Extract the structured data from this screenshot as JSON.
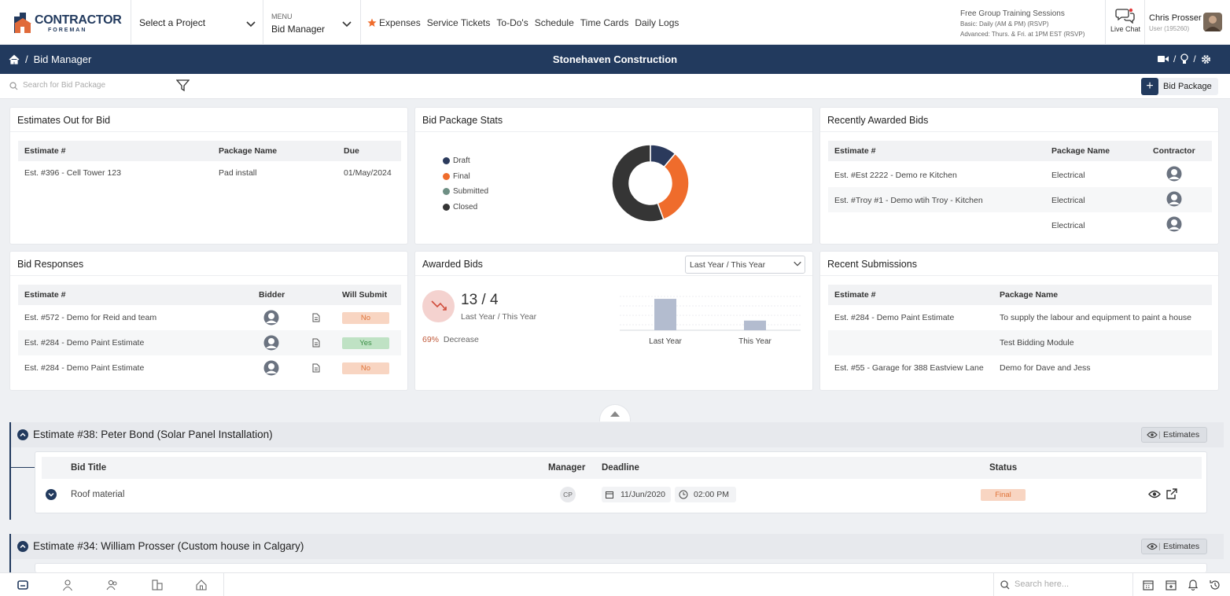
{
  "app": {
    "logo_text": "CONTRACTOR",
    "logo_sub": "FOREMAN",
    "project_select": "Select a Project",
    "menu_caption": "MENU",
    "menu_value": "Bid Manager",
    "nav_items": [
      "Expenses",
      "Service Tickets",
      "To-Do's",
      "Schedule",
      "Time Cards",
      "Daily Logs"
    ],
    "training": {
      "title": "Free Group Training Sessions",
      "basic": "Basic: Daily (AM & PM) (RSVP)",
      "advanced": "Advanced: Thurs. & Fri. at 1PM EST (RSVP)"
    },
    "live_chat": "Live Chat",
    "user_name": "Chris Prosser",
    "user_sub": "User (195260)"
  },
  "breadcrumb": {
    "sep": "/",
    "page": "Bid Manager"
  },
  "company": "Stonehaven Construction",
  "search": {
    "placeholder": "Search for Bid Package"
  },
  "add_button": "Bid Package",
  "estimates_out": {
    "title": "Estimates Out for Bid",
    "headers": [
      "Estimate #",
      "Package Name",
      "Due"
    ],
    "rows": [
      {
        "estimate": "Est. #396 - Cell Tower 123",
        "package": "Pad install",
        "due": "01/May/2024"
      }
    ]
  },
  "stats": {
    "title": "Bid Package Stats",
    "legend": [
      {
        "label": "Draft",
        "color": "#2b3a5c"
      },
      {
        "label": "Final",
        "color": "#ef6c2c"
      },
      {
        "label": "Submitted",
        "color": "#6e8f84"
      },
      {
        "label": "Closed",
        "color": "#353535"
      }
    ],
    "donut_values": [
      {
        "label": "Draft",
        "value": 1,
        "color": "#2b3a5c"
      },
      {
        "label": "Final",
        "value": 3,
        "color": "#ef6c2c"
      },
      {
        "label": "Closed",
        "value": 5,
        "color": "#353535"
      }
    ]
  },
  "recent_awarded": {
    "title": "Recently Awarded Bids",
    "headers": [
      "Estimate #",
      "Package Name",
      "Contractor"
    ],
    "rows": [
      {
        "estimate": "Est. #Est 2222 - Demo re Kitchen",
        "package": "Electrical"
      },
      {
        "estimate": "Est. #Troy #1 - Demo wtih Troy - Kitchen",
        "package": "Electrical"
      },
      {
        "estimate": "",
        "package": "Electrical"
      }
    ]
  },
  "bid_responses": {
    "title": "Bid Responses",
    "headers": [
      "Estimate #",
      "Bidder",
      "Will Submit"
    ],
    "rows": [
      {
        "estimate": "Est. #572 - Demo for Reid and team",
        "submit": "No"
      },
      {
        "estimate": "Est. #284 - Demo Paint Estimate",
        "submit": "Yes"
      },
      {
        "estimate": "Est. #284 - Demo Paint Estimate",
        "submit": "No"
      }
    ]
  },
  "awarded": {
    "title": "Awarded Bids",
    "period_select": "Last Year / This Year",
    "stat": "13 / 4",
    "stat_sub": "Last Year / This Year",
    "change_pct": "69%",
    "change_text": "Decrease"
  },
  "chart_data": {
    "type": "bar",
    "categories": [
      "Last Year",
      "This Year"
    ],
    "values": [
      13,
      4
    ],
    "ylim": [
      0,
      14
    ],
    "color": "#b3bccf"
  },
  "recent_submissions": {
    "title": "Recent Submissions",
    "headers": [
      "Estimate #",
      "Package Name"
    ],
    "rows": [
      {
        "estimate": "Est. #284 - Demo Paint Estimate",
        "package": "To supply the labour and equipment to paint a house"
      },
      {
        "estimate": "",
        "package": "Test Bidding Module"
      },
      {
        "estimate": "Est. #55 - Garage for 388 Eastview Lane",
        "package": "Demo for Dave and Jess"
      }
    ]
  },
  "estimate_groups": [
    {
      "title": "Estimate #38: Peter Bond (Solar Panel Installation)",
      "button": "Estimates",
      "headers": [
        "Bid Title",
        "Manager",
        "Deadline",
        "Status"
      ],
      "rows": [
        {
          "title": "Roof material",
          "manager": "CP",
          "date": "11/Jun/2020",
          "time": "02:00 PM",
          "status": "Final"
        }
      ]
    },
    {
      "title": "Estimate #34: William Prosser (Custom house in Calgary)",
      "button": "Estimates"
    }
  ],
  "bottom": {
    "search_placeholder": "Search here..."
  }
}
